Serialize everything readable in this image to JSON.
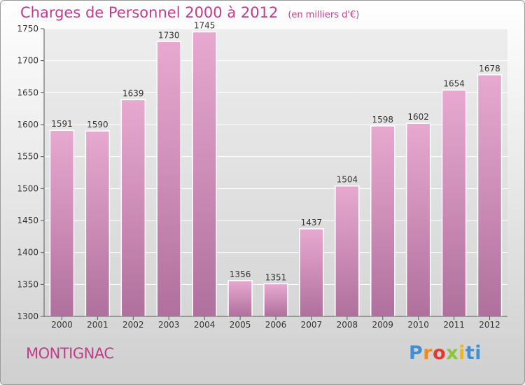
{
  "chart_data": {
    "type": "bar",
    "title": "Charges de Personnel 2000 à 2012",
    "subtitle": "(en milliers d'€)",
    "categories": [
      "2000",
      "2001",
      "2002",
      "2003",
      "2004",
      "2005",
      "2006",
      "2007",
      "2008",
      "2009",
      "2010",
      "2011",
      "2012"
    ],
    "values": [
      1591,
      1590,
      1639,
      1730,
      1745,
      1356,
      1351,
      1437,
      1504,
      1598,
      1602,
      1654,
      1678
    ],
    "ylim": [
      1300,
      1750
    ],
    "yticks": [
      1300,
      1350,
      1400,
      1450,
      1500,
      1550,
      1600,
      1650,
      1700,
      1750
    ],
    "grid": true,
    "bar_color": "#d98fbc"
  },
  "footer": {
    "place": "MONTIGNAC",
    "logo_letters": [
      "P",
      "r",
      "o",
      "x",
      "i",
      "ti"
    ]
  }
}
